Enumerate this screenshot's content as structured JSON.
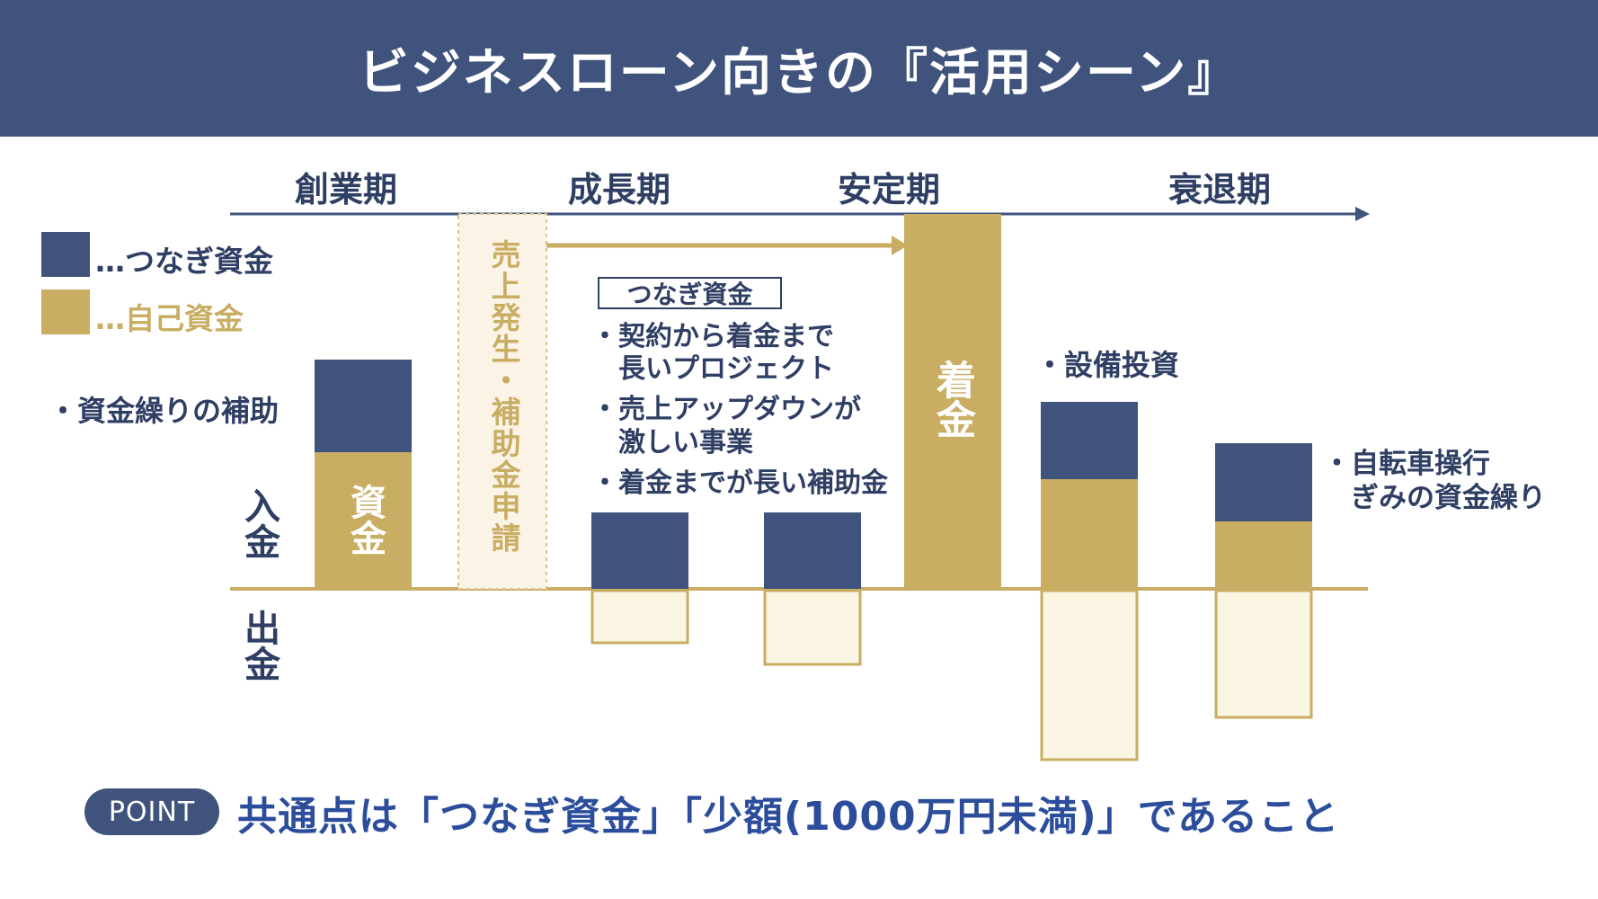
{
  "header": {
    "title": "ビジネスローン向きの『活用シーン』"
  },
  "phases": [
    "創業期",
    "成長期",
    "安定期",
    "衰退期"
  ],
  "legend": [
    {
      "label": "…つなぎ資金",
      "color": "#3f537c"
    },
    {
      "label": "…自己資金",
      "color": "#c8ad63"
    }
  ],
  "axis": {
    "income": "入金",
    "outgo": "出金"
  },
  "startup": {
    "note": "・資金繰りの補助",
    "bar_label": "資金"
  },
  "sales_strip": "売上発生・補助金申請",
  "tsunagi_box": "つなぎ資金",
  "growth_bullets": [
    "・契約から着金まで",
    "　長いプロジェクト",
    "・売上アップダウンが",
    "　激しい事業",
    "・着金までが長い補助金"
  ],
  "stable": {
    "bar_label": "着金"
  },
  "decline": {
    "note1": "・設備投資",
    "note2_line1": "・自転車操行",
    "note2_line2": "　ぎみの資金繰り"
  },
  "point": {
    "pill": "POINT",
    "text": "共通点は「つなぎ資金」「少額(1000万円未満)」であること"
  },
  "colors": {
    "navy": "#3f537c",
    "gold": "#c8ad63",
    "cream": "#fbf6e3",
    "strip": "#fbf4e6",
    "point_blue": "#2b4d9c"
  }
}
